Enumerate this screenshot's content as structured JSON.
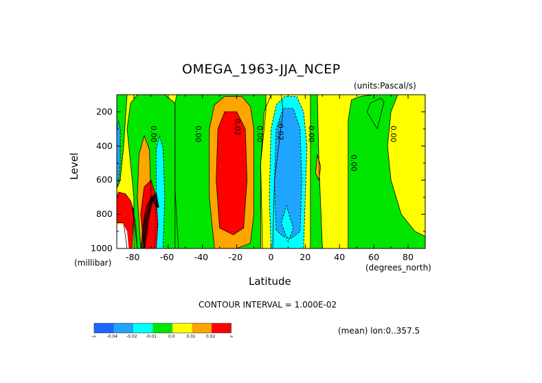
{
  "chart_data": {
    "type": "heatmap",
    "title": "OMEGA_1963-JJA_NCEP",
    "units_label": "(units:Pascal/s)",
    "xlabel": "Latitude",
    "x_units_label": "(degrees_north)",
    "ylabel": "Level",
    "y_units_label": "(millibar)",
    "x_range": [
      -90,
      90
    ],
    "y_range": [
      1000,
      100
    ],
    "x_ticks": [
      "-80",
      "-60",
      "-40",
      "-20",
      "0",
      "20",
      "40",
      "60",
      "80"
    ],
    "x_tick_values": [
      -80,
      -60,
      -40,
      -20,
      0,
      20,
      40,
      60,
      80
    ],
    "y_ticks": [
      "200",
      "400",
      "600",
      "800",
      "1000"
    ],
    "y_tick_values": [
      200,
      400,
      600,
      800,
      1000
    ],
    "contour_interval_text": "CONTOUR INTERVAL = 1.000E-02",
    "footnote": "(mean) lon:0..357.5",
    "contour_labels": [
      {
        "text": "0.00",
        "lat": -70,
        "lev": 330
      },
      {
        "text": "0.00",
        "lat": -44,
        "lev": 330
      },
      {
        "text": "0.02",
        "lat": -21,
        "lev": 290
      },
      {
        "text": "0.00",
        "lat": -8,
        "lev": 330
      },
      {
        "text": "-0.02",
        "lat": 4,
        "lev": 310
      },
      {
        "text": "0.00",
        "lat": 22,
        "lev": 330
      },
      {
        "text": "0.00",
        "lat": 47,
        "lev": 500
      },
      {
        "text": "0.00",
        "lat": 70,
        "lev": 330
      }
    ],
    "legend": {
      "colors": [
        "#1f66ff",
        "#1fa5ff",
        "#00ffff",
        "#00e600",
        "#ffff00",
        "#ffa500",
        "#ff0000"
      ],
      "labels": [
        "-∞",
        "-0.04",
        "-0.02",
        "-0.01",
        "0.0",
        "0.01",
        "0.02",
        "∞"
      ]
    },
    "regions": [
      {
        "bin": "yellow",
        "color": "#ffff00",
        "poly": [
          [
            -90,
            1000
          ],
          [
            -90,
            100
          ],
          [
            90,
            100
          ],
          [
            90,
            1000
          ]
        ]
      },
      {
        "bin": "green",
        "color": "#00e600",
        "poly": [
          [
            -80,
            1000
          ],
          [
            -80,
            700
          ],
          [
            -82,
            500
          ],
          [
            -84,
            300
          ],
          [
            -82,
            150
          ],
          [
            -78,
            100
          ],
          [
            -62,
            100
          ],
          [
            -56,
            150
          ],
          [
            -56,
            650
          ],
          [
            -54,
            1000
          ]
        ]
      },
      {
        "bin": "green",
        "color": "#00e600",
        "poly": [
          [
            -56,
            1000
          ],
          [
            -56,
            150
          ],
          [
            -55,
            100
          ],
          [
            -3,
            100
          ],
          [
            -3,
            200
          ],
          [
            -6,
            500
          ],
          [
            -5,
            1000
          ]
        ]
      },
      {
        "bin": "yellow",
        "color": "#ffff00",
        "poly": [
          [
            -6,
            1000
          ],
          [
            -6,
            500
          ],
          [
            -4,
            200
          ],
          [
            0,
            100
          ],
          [
            6,
            100
          ],
          [
            7,
            200
          ],
          [
            2,
            600
          ],
          [
            1,
            1000
          ]
        ]
      },
      {
        "bin": "green",
        "color": "#00e600",
        "poly": [
          [
            -90,
            1000
          ],
          [
            -90,
            100
          ],
          [
            -84,
            100
          ],
          [
            -86,
            400
          ],
          [
            -88,
            600
          ],
          [
            -90,
            650
          ]
        ]
      },
      {
        "bin": "green",
        "color": "#00e600",
        "poly": [
          [
            23,
            1000
          ],
          [
            23,
            100
          ],
          [
            27,
            100
          ],
          [
            28,
            500
          ],
          [
            30,
            1000
          ]
        ]
      },
      {
        "bin": "green",
        "color": "#00e600",
        "poly": [
          [
            45,
            1000
          ],
          [
            45,
            250
          ],
          [
            47,
            130
          ],
          [
            52,
            110
          ],
          [
            60,
            100
          ],
          [
            74,
            100
          ],
          [
            70,
            200
          ],
          [
            68,
            400
          ],
          [
            70,
            600
          ],
          [
            76,
            800
          ],
          [
            84,
            900
          ],
          [
            90,
            930
          ],
          [
            90,
            1000
          ]
        ]
      },
      {
        "bin": "green",
        "color": "#00e600",
        "poly": [
          [
            56,
            200
          ],
          [
            58,
            150
          ],
          [
            64,
            120
          ],
          [
            66,
            140
          ],
          [
            62,
            300
          ]
        ]
      },
      {
        "bin": "orange",
        "color": "#ffa500",
        "poly": [
          [
            -33,
            1000
          ],
          [
            -36,
            700
          ],
          [
            -36,
            300
          ],
          [
            -33,
            160
          ],
          [
            -27,
            110
          ],
          [
            -17,
            110
          ],
          [
            -12,
            170
          ],
          [
            -10,
            300
          ],
          [
            -10,
            800
          ],
          [
            -12,
            970
          ],
          [
            -20,
            1000
          ]
        ]
      },
      {
        "bin": "red",
        "color": "#ff0000",
        "poly": [
          [
            -30,
            880
          ],
          [
            -32,
            600
          ],
          [
            -31,
            300
          ],
          [
            -27,
            200
          ],
          [
            -20,
            200
          ],
          [
            -15,
            300
          ],
          [
            -14,
            600
          ],
          [
            -16,
            880
          ],
          [
            -22,
            920
          ]
        ]
      },
      {
        "bin": "cyan",
        "color": "#00ffff",
        "poly": [
          [
            0,
            1000
          ],
          [
            -1,
            700
          ],
          [
            0,
            300
          ],
          [
            3,
            160
          ],
          [
            8,
            110
          ],
          [
            15,
            110
          ],
          [
            19,
            200
          ],
          [
            21,
            400
          ],
          [
            20,
            700
          ],
          [
            19,
            1000
          ]
        ]
      },
      {
        "bin": "blue",
        "color": "#1fa5ff",
        "poly": [
          [
            3,
            890
          ],
          [
            2,
            600
          ],
          [
            3,
            300
          ],
          [
            7,
            180
          ],
          [
            13,
            180
          ],
          [
            17,
            300
          ],
          [
            18,
            600
          ],
          [
            17,
            900
          ],
          [
            12,
            940
          ],
          [
            7,
            930
          ]
        ]
      },
      {
        "bin": "cyan",
        "color": "#00ffff",
        "poly": [
          [
            6,
            850
          ],
          [
            9,
            750
          ],
          [
            13,
            880
          ],
          [
            10,
            960
          ]
        ]
      },
      {
        "bin": "orange",
        "color": "#ffa500",
        "poly": [
          [
            -76,
            1000
          ],
          [
            -78,
            700
          ],
          [
            -77,
            450
          ],
          [
            -74,
            340
          ],
          [
            -71,
            420
          ],
          [
            -70,
            700
          ],
          [
            -72,
            900
          ],
          [
            -74,
            1000
          ]
        ]
      },
      {
        "bin": "cyan",
        "color": "#00ffff",
        "poly": [
          [
            -68,
            1000
          ],
          [
            -67,
            700
          ],
          [
            -67,
            420
          ],
          [
            -65,
            340
          ],
          [
            -63,
            420
          ],
          [
            -62,
            700
          ],
          [
            -63,
            1000
          ]
        ]
      },
      {
        "bin": "blue",
        "color": "#1fa5ff",
        "poly": [
          [
            -90,
            640
          ],
          [
            -90,
            300
          ],
          [
            -89,
            250
          ],
          [
            -88,
            300
          ],
          [
            -88,
            500
          ],
          [
            -89,
            620
          ]
        ]
      },
      {
        "bin": "red",
        "color": "#ff0000",
        "poly": [
          [
            -74,
            1000
          ],
          [
            -76,
            800
          ],
          [
            -74,
            640
          ],
          [
            -70,
            600
          ],
          [
            -67,
            700
          ],
          [
            -66,
            860
          ],
          [
            -67,
            1000
          ]
        ]
      },
      {
        "bin": "red",
        "color": "#ff0000",
        "poly": [
          [
            -90,
            700
          ],
          [
            -89,
            670
          ],
          [
            -85,
            680
          ],
          [
            -82,
            720
          ],
          [
            -80,
            780
          ],
          [
            -81,
            1000
          ],
          [
            -84,
            1000
          ],
          [
            -86,
            850
          ],
          [
            -90,
            850
          ]
        ]
      },
      {
        "bin": "white",
        "color": "#ffffff",
        "poly": [
          [
            -90,
            860
          ],
          [
            -86,
            860
          ],
          [
            -84,
            900
          ],
          [
            -83,
            1000
          ],
          [
            -90,
            1000
          ]
        ]
      },
      {
        "bin": "orange",
        "color": "#ffa500",
        "poly": [
          [
            26,
            560
          ],
          [
            27,
            450
          ],
          [
            29,
            520
          ],
          [
            28,
            600
          ]
        ]
      },
      {
        "bin": "orange",
        "color": "#ffa500",
        "poly": [
          [
            -78,
            1000
          ],
          [
            -80,
            820
          ],
          [
            -81,
            760
          ],
          [
            -79,
            850
          ]
        ]
      }
    ]
  }
}
